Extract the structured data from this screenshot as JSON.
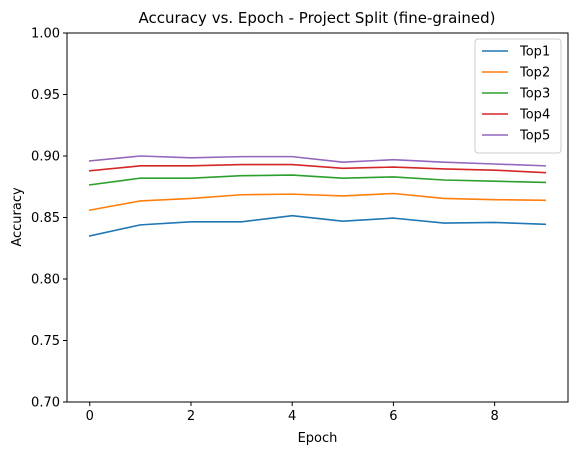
{
  "chart_data": {
    "type": "line",
    "title": "Accuracy vs. Epoch  - Project Split (fine-grained)",
    "xlabel": "Epoch",
    "ylabel": "Accuracy",
    "xlim": [
      -0.45,
      9.45
    ],
    "ylim": [
      0.7,
      1.0
    ],
    "xticks": [
      0,
      2,
      4,
      6,
      8
    ],
    "xtick_labels": [
      "0",
      "2",
      "4",
      "6",
      "8"
    ],
    "yticks": [
      0.7,
      0.75,
      0.8,
      0.85,
      0.9,
      0.95,
      1.0
    ],
    "ytick_labels": [
      "0.70",
      "0.75",
      "0.80",
      "0.85",
      "0.90",
      "0.95",
      "1.00"
    ],
    "grid": false,
    "legend_position": "top-right",
    "x": [
      0,
      1,
      2,
      3,
      4,
      5,
      6,
      7,
      8,
      9
    ],
    "series": [
      {
        "name": "Top1",
        "color": "#1f77b4",
        "values": [
          0.835,
          0.844,
          0.8465,
          0.8465,
          0.8515,
          0.847,
          0.8495,
          0.8455,
          0.846,
          0.8445
        ]
      },
      {
        "name": "Top2",
        "color": "#ff7f0e",
        "values": [
          0.856,
          0.8635,
          0.8655,
          0.8685,
          0.869,
          0.8675,
          0.8695,
          0.8655,
          0.8645,
          0.864
        ]
      },
      {
        "name": "Top3",
        "color": "#2ca02c",
        "values": [
          0.8765,
          0.882,
          0.882,
          0.884,
          0.8845,
          0.882,
          0.883,
          0.8805,
          0.8795,
          0.8785
        ]
      },
      {
        "name": "Top4",
        "color": "#d62728",
        "values": [
          0.888,
          0.892,
          0.892,
          0.893,
          0.893,
          0.89,
          0.891,
          0.8895,
          0.8885,
          0.8865
        ]
      },
      {
        "name": "Top5",
        "color": "#9467bd",
        "values": [
          0.896,
          0.9,
          0.8985,
          0.8995,
          0.8995,
          0.895,
          0.897,
          0.895,
          0.8935,
          0.892
        ]
      }
    ]
  }
}
